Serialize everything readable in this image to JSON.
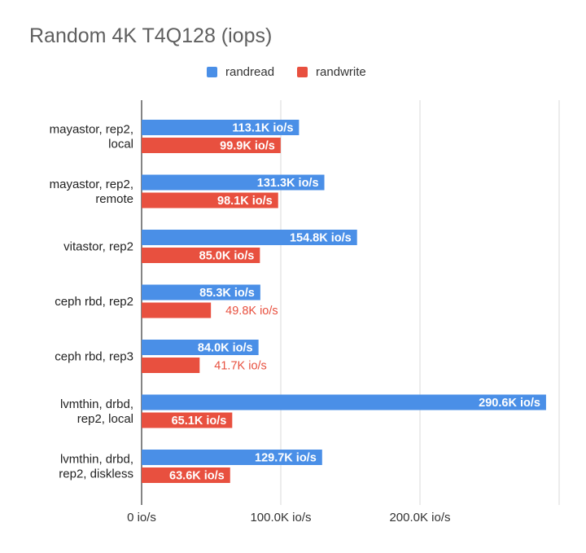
{
  "chart_data": {
    "type": "bar",
    "orientation": "horizontal",
    "title": "Random 4K T4Q128 (iops)",
    "categories": [
      [
        "mayastor, rep2,",
        "local"
      ],
      [
        "mayastor, rep2,",
        "remote"
      ],
      [
        "vitastor, rep2"
      ],
      [
        "ceph rbd, rep2"
      ],
      [
        "ceph rbd, rep3"
      ],
      [
        "lvmthin, drbd,",
        "rep2, local"
      ],
      [
        "lvmthin, drbd,",
        "rep2, diskless"
      ]
    ],
    "series": [
      {
        "name": "randread",
        "color": "#4a8fe7",
        "values": [
          113100,
          131300,
          154800,
          85300,
          84000,
          290600,
          129700
        ],
        "labels": [
          "113.1K io/s",
          "131.3K io/s",
          "154.8K io/s",
          "85.3K io/s",
          "84.0K io/s",
          "290.6K io/s",
          "129.7K io/s"
        ]
      },
      {
        "name": "randwrite",
        "color": "#e8503f",
        "values": [
          99900,
          98100,
          85000,
          49800,
          41700,
          65100,
          63600
        ],
        "labels": [
          "99.9K io/s",
          "98.1K io/s",
          "85.0K io/s",
          "49.8K io/s",
          "41.7K io/s",
          "65.1K io/s",
          "63.6K io/s"
        ]
      }
    ],
    "xlim": [
      0,
      300000
    ],
    "xticks": [
      0,
      100000,
      200000
    ],
    "xtick_labels": [
      "0 io/s",
      "100.0K io/s",
      "200.0K io/s"
    ],
    "grid": true,
    "legend_position": "top"
  }
}
